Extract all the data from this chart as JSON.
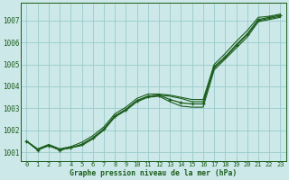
{
  "title": "Graphe pression niveau de la mer (hPa)",
  "bg_color": "#cce8e8",
  "grid_color": "#99cccc",
  "line_color": "#1a5c1a",
  "xlim": [
    -0.5,
    23.5
  ],
  "ylim": [
    1000.6,
    1007.8
  ],
  "yticks": [
    1001,
    1002,
    1003,
    1004,
    1005,
    1006,
    1007
  ],
  "xticks": [
    0,
    1,
    2,
    3,
    4,
    5,
    6,
    7,
    8,
    9,
    10,
    11,
    12,
    13,
    14,
    15,
    16,
    17,
    18,
    19,
    20,
    21,
    22,
    23
  ],
  "xlabels": [
    "0",
    "1",
    "2",
    "3",
    "4",
    "5",
    "6",
    "7",
    "8",
    "9",
    "10",
    "11",
    "12",
    "13",
    "14",
    "15",
    "16",
    "17",
    "18",
    "19",
    "20",
    "21",
    "22",
    "23"
  ],
  "line_straight": [
    1001.5,
    1001.1,
    1001.3,
    1001.1,
    1001.2,
    1001.35,
    1001.65,
    1002.05,
    1002.65,
    1002.95,
    1003.35,
    1003.55,
    1003.6,
    1003.55,
    1003.45,
    1003.3,
    1003.3,
    1004.85,
    1005.3,
    1005.85,
    1006.35,
    1007.0,
    1007.1,
    1007.2
  ],
  "line_dip": [
    1001.5,
    1001.1,
    1001.3,
    1001.1,
    1001.2,
    1001.35,
    1001.65,
    1002.05,
    1002.65,
    1002.95,
    1003.35,
    1003.55,
    1003.6,
    1003.4,
    1003.25,
    1003.2,
    1003.2,
    1004.9,
    1005.35,
    1005.9,
    1006.4,
    1007.05,
    1007.15,
    1007.25
  ],
  "line_upper": [
    1001.5,
    1001.15,
    1001.35,
    1001.15,
    1001.25,
    1001.45,
    1001.75,
    1002.15,
    1002.75,
    1003.05,
    1003.45,
    1003.65,
    1003.65,
    1003.6,
    1003.5,
    1003.4,
    1003.4,
    1005.0,
    1005.5,
    1006.05,
    1006.55,
    1007.15,
    1007.2,
    1007.3
  ],
  "line_lower": [
    1001.5,
    1001.1,
    1001.3,
    1001.1,
    1001.2,
    1001.3,
    1001.6,
    1002.0,
    1002.6,
    1002.9,
    1003.3,
    1003.5,
    1003.55,
    1003.3,
    1003.1,
    1003.05,
    1003.05,
    1004.75,
    1005.25,
    1005.75,
    1006.25,
    1006.95,
    1007.05,
    1007.15
  ]
}
